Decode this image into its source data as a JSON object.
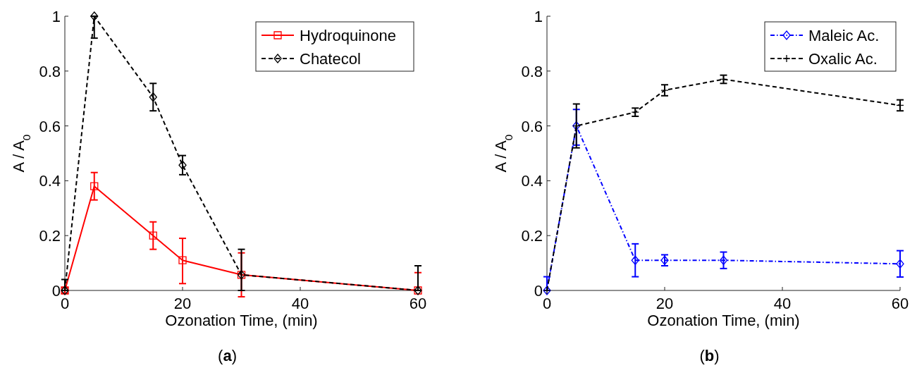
{
  "chart_data": [
    {
      "type": "line",
      "xlabel": "Ozonation Time, (min)",
      "ylabel": "A / A$_{0}$",
      "annotations": [
        "(a)"
      ],
      "x": [
        0,
        5,
        15,
        20,
        30,
        60
      ],
      "xlim": [
        0,
        60
      ],
      "xticks": [
        0,
        20,
        40,
        60
      ],
      "ylim": [
        0,
        1
      ],
      "yticks": [
        0,
        0.2,
        0.4,
        0.6,
        0.8,
        1
      ],
      "grid": false,
      "legend": "top right",
      "series": [
        {
          "name": "Hydroquinone",
          "color": "#ff0000",
          "marker": "square",
          "line_style": "solid",
          "values": [
            0,
            0.38,
            0.2,
            0.11,
            0.057,
            0
          ],
          "errors": [
            0.01,
            0.05,
            0.05,
            [
              0.025,
              0.19
            ],
            0.08,
            [
              0,
              0.065
            ]
          ]
        },
        {
          "name": "Chatecol",
          "color": "#000000",
          "marker": "diamond",
          "line_style": "dashed",
          "values": [
            0,
            1,
            0.705,
            0.457,
            0.057,
            0
          ],
          "errors": [
            [
              0,
              0.04
            ],
            [
              0.92,
              1
            ],
            0.05,
            0.035,
            [
              0,
              0.15
            ],
            [
              0,
              0.09
            ]
          ]
        }
      ]
    },
    {
      "type": "line",
      "xlabel": "Ozonation Time, (min)",
      "ylabel": "A / A$_{0}$",
      "annotations": [
        "(b)"
      ],
      "x": [
        0,
        5,
        15,
        20,
        30,
        60
      ],
      "xlim": [
        0,
        60
      ],
      "xticks": [
        0,
        20,
        40,
        60
      ],
      "ylim": [
        0,
        1
      ],
      "yticks": [
        0,
        0.2,
        0.4,
        0.6,
        0.8,
        1
      ],
      "grid": false,
      "legend": "top right",
      "series": [
        {
          "name": "Maleic Ac.",
          "color": "#0000ff",
          "marker": "diamond",
          "line_style": "dashdot",
          "values": [
            0,
            0.6,
            0.11,
            0.11,
            0.11,
            0.097
          ],
          "errors": [
            [
              0,
              0.05
            ],
            [
              0.53,
              0.66
            ],
            0.06,
            0.02,
            0.03,
            0.048
          ]
        },
        {
          "name": "Oxalic Ac.",
          "color": "#000000",
          "marker": "cross",
          "line_style": "dashed",
          "values": [
            0,
            0.6,
            0.65,
            0.73,
            0.77,
            0.675
          ],
          "errors": [
            null,
            0.08,
            0.015,
            0.02,
            0.015,
            0.02
          ]
        }
      ]
    }
  ]
}
